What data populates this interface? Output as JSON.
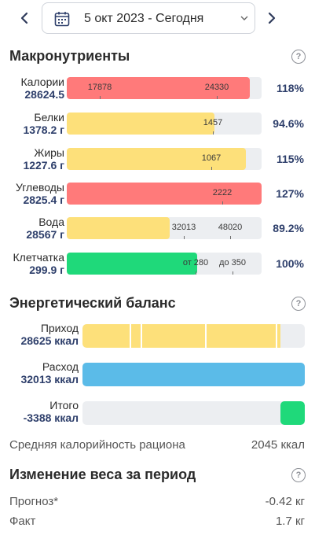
{
  "header": {
    "date_label": "5 окт 2023 - Сегодня",
    "prev_icon": "chevron-left-icon",
    "next_icon": "chevron-right-icon",
    "calendar_icon": "calendar-icon"
  },
  "macros": {
    "title": "Макронутриенты",
    "help": "?",
    "rows": [
      {
        "label": "Калории",
        "value": "28624.5",
        "percent": "118%",
        "color": "#ff7a7a",
        "fill_fraction": 0.94,
        "markers": [
          "17878",
          "24330"
        ]
      },
      {
        "label": "Белки",
        "value": "1378.2 г",
        "percent": "94.6%",
        "color": "#fde07a",
        "fill_fraction": 0.76,
        "markers": [
          "1457"
        ]
      },
      {
        "label": "Жиры",
        "value": "1227.6 г",
        "percent": "115%",
        "color": "#fde07a",
        "fill_fraction": 0.92,
        "markers": [
          "1067"
        ]
      },
      {
        "label": "Углеводы",
        "value": "2825.4 г",
        "percent": "127%",
        "color": "#ff7a7a",
        "fill_fraction": 1.0,
        "markers": [
          "2222"
        ]
      },
      {
        "label": "Вода",
        "value": "28567 г",
        "percent": "89.2%",
        "color": "#fde07a",
        "fill_fraction": 0.53,
        "markers": [
          "32013",
          "48020"
        ]
      },
      {
        "label": "Клетчатка",
        "value": "299.9 г",
        "percent": "100%",
        "color": "#1fd97a",
        "fill_fraction": 0.67,
        "markers": [
          "от 280",
          "до 350"
        ]
      }
    ]
  },
  "energy": {
    "title": "Энергетический баланс",
    "help": "?",
    "intake": {
      "label": "Приход",
      "value": "28625 ккал",
      "color": "#fde07a"
    },
    "expense": {
      "label": "Расход",
      "value": "32013 ккал",
      "color": "#5bbbe8"
    },
    "total": {
      "label": "Итого",
      "value": "-3388 ккал",
      "color": "#1fd97a"
    },
    "avg_label": "Средняя калорийность рациона",
    "avg_value": "2045 ккал"
  },
  "weight": {
    "title": "Изменение веса за период",
    "help": "?",
    "forecast_label": "Прогноз*",
    "forecast_value": "-0.42 кг",
    "fact_label": "Факт",
    "fact_value": "1.7 кг"
  }
}
